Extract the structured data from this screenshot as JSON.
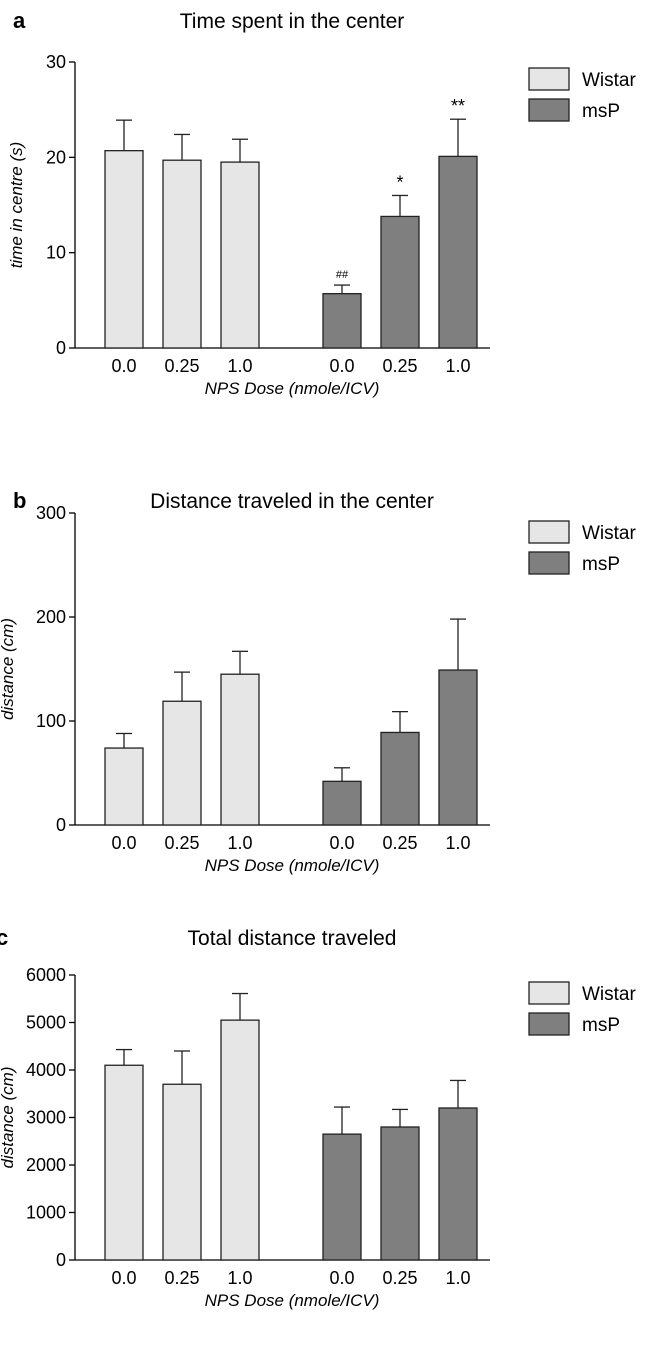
{
  "chart_data": [
    {
      "panel": "a",
      "type": "bar",
      "title": "Time spent in the center",
      "xlabel": "NPS Dose (nmole/ICV)",
      "ylabel": "time in centre (s)",
      "ylim": [
        0,
        30
      ],
      "yticks": [
        "0",
        "10",
        "20",
        "30"
      ],
      "legend": "top-right",
      "grid": false,
      "series": [
        {
          "name": "Wistar",
          "color": "#e6e6e6",
          "categories": [
            "0.0",
            "0.25",
            "1.0"
          ],
          "values": [
            20.7,
            19.7,
            19.5
          ],
          "errors": [
            3.2,
            2.7,
            2.4
          ],
          "annotations": [
            "",
            "",
            ""
          ]
        },
        {
          "name": "msP",
          "color": "#7f7f7f",
          "categories": [
            "0.0",
            "0.25",
            "1.0"
          ],
          "values": [
            5.7,
            13.8,
            20.1
          ],
          "errors": [
            0.9,
            2.2,
            3.9
          ],
          "annotations": [
            "##",
            "*",
            "**"
          ]
        }
      ]
    },
    {
      "panel": "b",
      "type": "bar",
      "title": "Distance traveled in the center",
      "xlabel": "NPS Dose (nmole/ICV)",
      "ylabel": "distance (cm)",
      "ylim": [
        0,
        300
      ],
      "yticks": [
        "0",
        "100",
        "200",
        "300"
      ],
      "legend": "top-right",
      "grid": false,
      "series": [
        {
          "name": "Wistar",
          "color": "#e6e6e6",
          "categories": [
            "0.0",
            "0.25",
            "1.0"
          ],
          "values": [
            74,
            119,
            145
          ],
          "errors": [
            14,
            28,
            22
          ],
          "annotations": [
            "",
            "",
            ""
          ]
        },
        {
          "name": "msP",
          "color": "#7f7f7f",
          "categories": [
            "0.0",
            "0.25",
            "1.0"
          ],
          "values": [
            42,
            89,
            149
          ],
          "errors": [
            13,
            20,
            49
          ],
          "annotations": [
            "",
            "",
            ""
          ]
        }
      ]
    },
    {
      "panel": "c",
      "type": "bar",
      "title": "Total distance traveled",
      "xlabel": "NPS Dose (nmole/ICV)",
      "ylabel": "distance (cm)",
      "ylim": [
        0,
        6000
      ],
      "yticks": [
        "0",
        "1000",
        "2000",
        "3000",
        "4000",
        "5000",
        "6000"
      ],
      "legend": "top-right",
      "grid": false,
      "series": [
        {
          "name": "Wistar",
          "color": "#e6e6e6",
          "categories": [
            "0.0",
            "0.25",
            "1.0"
          ],
          "values": [
            4100,
            3700,
            5050
          ],
          "errors": [
            330,
            700,
            560
          ],
          "annotations": [
            "",
            "",
            ""
          ]
        },
        {
          "name": "msP",
          "color": "#7f7f7f",
          "categories": [
            "0.0",
            "0.25",
            "1.0"
          ],
          "values": [
            2650,
            2800,
            3200
          ],
          "errors": [
            570,
            370,
            580
          ],
          "annotations": [
            "",
            "",
            ""
          ]
        }
      ]
    }
  ]
}
